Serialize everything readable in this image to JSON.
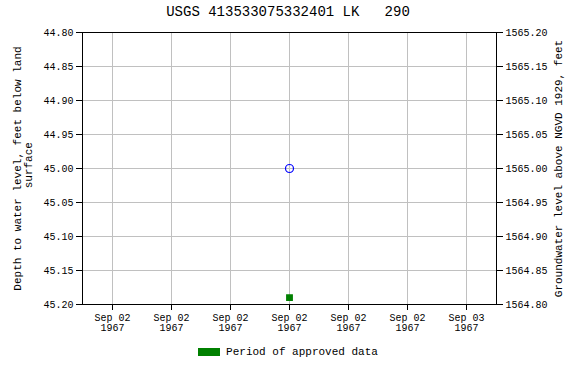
{
  "chart_data": {
    "type": "scatter",
    "title": "USGS 413533075332401 LK   290",
    "ylabel": "Depth to water level, feet below land\n surface",
    "y2label": "Groundwater level above NGVD 1929, feet",
    "categories": [
      "Sep 02\n1967",
      "Sep 02\n1967",
      "Sep 02\n1967",
      "Sep 02\n1967",
      "Sep 02\n1967",
      "Sep 02\n1967",
      "Sep 03\n1967"
    ],
    "series": [
      {
        "color": "blue",
        "marker": "open_circle",
        "values": [
          null,
          null,
          null,
          45.0,
          null,
          null,
          null
        ]
      },
      {
        "name": "Period of approved data",
        "color": "#008000",
        "marker": "square",
        "values": [
          null,
          null,
          null,
          45.19,
          null,
          null,
          null
        ]
      }
    ],
    "ylim": [
      45.2,
      44.8
    ],
    "yticks": [
      {
        "value": 44.8,
        "label": "44.80"
      },
      {
        "value": 44.85,
        "label": "44.85"
      },
      {
        "value": 44.9,
        "label": "44.90"
      },
      {
        "value": 44.95,
        "label": "44.95"
      },
      {
        "value": 45.0,
        "label": "45.00"
      },
      {
        "value": 45.05,
        "label": "45.05"
      },
      {
        "value": 45.1,
        "label": "45.10"
      },
      {
        "value": 45.15,
        "label": "45.15"
      },
      {
        "value": 45.2,
        "label": "45.20"
      }
    ],
    "y2lim": [
      1564.8,
      1565.2
    ],
    "y2ticks": [
      {
        "value": 1565.2,
        "label": "1565.20"
      },
      {
        "value": 1565.15,
        "label": "1565.15"
      },
      {
        "value": 1565.1,
        "label": "1565.10"
      },
      {
        "value": 1565.05,
        "label": "1565.05"
      },
      {
        "value": 1565.0,
        "label": "1565.00"
      },
      {
        "value": 1564.95,
        "label": "1564.95"
      },
      {
        "value": 1564.9,
        "label": "1564.90"
      },
      {
        "value": 1564.85,
        "label": "1564.85"
      },
      {
        "value": 1564.8,
        "label": "1564.80"
      }
    ],
    "grid": true,
    "legend": "bottom"
  }
}
